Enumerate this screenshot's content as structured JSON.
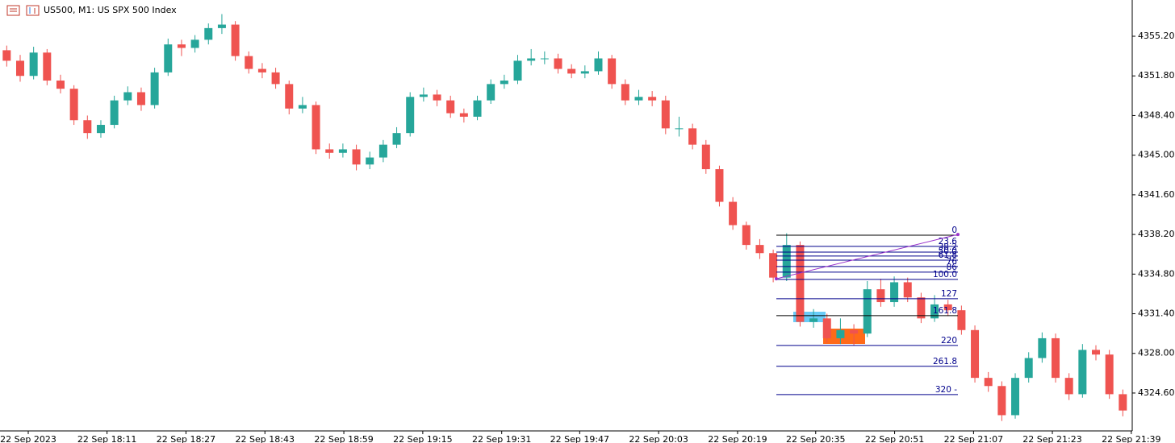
{
  "chart_data": {
    "type": "candlestick",
    "title": "US500, M1:  US SPX 500 Index",
    "up_color": "#26a69a",
    "down_color": "#ef5350",
    "ylim": [
      4321.35,
      4358.31
    ],
    "yticks": [
      {
        "value": 4355.2,
        "label": "4355.20"
      },
      {
        "value": 4351.8,
        "label": "4351.80"
      },
      {
        "value": 4348.4,
        "label": "4348.40"
      },
      {
        "value": 4345.0,
        "label": "4345.00"
      },
      {
        "value": 4341.6,
        "label": "4341.60"
      },
      {
        "value": 4338.2,
        "label": "4338.20"
      },
      {
        "value": 4334.8,
        "label": "4334.80"
      },
      {
        "value": 4331.4,
        "label": "4331.40"
      },
      {
        "value": 4328.0,
        "label": "4328.00"
      },
      {
        "value": 4324.6,
        "label": "4324.60"
      }
    ],
    "xlim": [
      0,
      84.2
    ],
    "xticks": [
      {
        "value": 2.1,
        "label": "22 Sep 2023"
      },
      {
        "value": 7.96,
        "label": "22 Sep 18:11"
      },
      {
        "value": 13.83,
        "label": "22 Sep 18:27"
      },
      {
        "value": 19.7,
        "label": "22 Sep 18:43"
      },
      {
        "value": 25.57,
        "label": "22 Sep 18:59"
      },
      {
        "value": 31.44,
        "label": "22 Sep 19:15"
      },
      {
        "value": 37.31,
        "label": "22 Sep 19:31"
      },
      {
        "value": 43.11,
        "label": "22 Sep 19:47"
      },
      {
        "value": 48.98,
        "label": "22 Sep 20:03"
      },
      {
        "value": 54.85,
        "label": "22 Sep 20:19"
      },
      {
        "value": 60.66,
        "label": "22 Sep 20:35"
      },
      {
        "value": 66.53,
        "label": "22 Sep 20:51"
      },
      {
        "value": 72.4,
        "label": "22 Sep 21:07"
      },
      {
        "value": 78.26,
        "label": "22 Sep 21:23"
      },
      {
        "value": 84.13,
        "label": "22 Sep 21:39"
      }
    ],
    "open": [
      4354.0,
      4353.1,
      4351.8,
      4353.8,
      4351.4,
      4350.7,
      4348.0,
      4346.9,
      4347.6,
      4349.7,
      4350.4,
      4349.3,
      4352.1,
      4354.5,
      4354.2,
      4354.9,
      4355.9,
      4356.2,
      4353.5,
      4352.4,
      4352.1,
      4351.1,
      4349.0,
      4349.3,
      4345.5,
      4345.2,
      4345.5,
      4344.2,
      4344.8,
      4345.9,
      4346.9,
      4350.0,
      4350.2,
      4349.7,
      4348.6,
      4348.3,
      4349.7,
      4351.1,
      4351.4,
      4353.1,
      4353.3,
      4353.3,
      4352.4,
      4352.0,
      4352.2,
      4353.3,
      4351.1,
      4349.7,
      4350.0,
      4349.7,
      4347.3,
      4347.3,
      4345.9,
      4343.8,
      4341.0,
      4339.0,
      4337.3,
      4336.6,
      4334.5,
      4337.3,
      4330.7,
      4331.0,
      4329.3,
      4330.0,
      4329.7,
      4333.5,
      4332.4,
      4334.1,
      4332.8,
      4331.0,
      4332.2,
      4331.7,
      4330.0,
      4325.9,
      4325.2,
      4322.7,
      4325.9,
      4327.6,
      4329.3,
      4325.9,
      4324.5,
      4328.3,
      4327.9,
      4324.5
    ],
    "high": [
      4354.4,
      4353.6,
      4354.3,
      4354.1,
      4351.9,
      4351.0,
      4348.4,
      4348.0,
      4350.1,
      4350.9,
      4350.8,
      4352.5,
      4355.0,
      4354.9,
      4355.3,
      4356.3,
      4357.1,
      4356.5,
      4353.9,
      4352.9,
      4352.5,
      4351.4,
      4350.0,
      4349.6,
      4346.0,
      4346.0,
      4345.9,
      4345.3,
      4346.3,
      4347.4,
      4350.4,
      4350.8,
      4350.6,
      4350.1,
      4349.0,
      4350.1,
      4351.5,
      4351.9,
      4353.6,
      4354.1,
      4353.9,
      4353.7,
      4352.8,
      4352.7,
      4353.9,
      4353.6,
      4351.5,
      4350.6,
      4350.5,
      4350.1,
      4348.3,
      4347.7,
      4346.3,
      4344.1,
      4341.4,
      4339.3,
      4337.8,
      4336.9,
      4338.3,
      4337.6,
      4331.8,
      4331.4,
      4331.0,
      4330.5,
      4334.2,
      4334.4,
      4334.6,
      4334.5,
      4333.2,
      4333.0,
      4332.6,
      4332.1,
      4330.4,
      4326.4,
      4325.6,
      4326.3,
      4328.1,
      4329.8,
      4329.7,
      4326.3,
      4328.8,
      4328.7,
      4328.3,
      4324.9
    ],
    "low": [
      4352.6,
      4351.3,
      4351.5,
      4351.0,
      4350.3,
      4347.6,
      4346.4,
      4346.5,
      4347.3,
      4349.3,
      4348.8,
      4349.0,
      4351.8,
      4353.5,
      4353.8,
      4354.5,
      4355.4,
      4353.1,
      4352.0,
      4351.6,
      4350.7,
      4348.5,
      4348.6,
      4345.1,
      4344.7,
      4344.8,
      4343.7,
      4343.8,
      4344.4,
      4345.6,
      4346.6,
      4349.6,
      4349.2,
      4348.2,
      4347.8,
      4348.0,
      4349.4,
      4350.7,
      4351.1,
      4352.7,
      4352.8,
      4352.0,
      4351.6,
      4351.6,
      4351.9,
      4350.7,
      4349.3,
      4349.3,
      4349.2,
      4346.8,
      4346.6,
      4345.5,
      4343.4,
      4340.6,
      4338.6,
      4336.9,
      4336.1,
      4334.1,
      4334.2,
      4330.3,
      4330.2,
      4328.9,
      4328.8,
      4328.7,
      4329.4,
      4332.0,
      4332.0,
      4332.4,
      4330.6,
      4330.7,
      4331.2,
      4329.6,
      4325.5,
      4324.7,
      4322.2,
      4322.4,
      4325.5,
      4327.2,
      4325.5,
      4324.0,
      4324.2,
      4327.4,
      4324.1,
      4322.6
    ],
    "close": [
      4353.1,
      4351.8,
      4353.8,
      4351.4,
      4350.7,
      4348.0,
      4346.9,
      4347.6,
      4349.7,
      4350.4,
      4349.3,
      4352.1,
      4354.5,
      4354.2,
      4354.9,
      4355.9,
      4356.2,
      4353.5,
      4352.4,
      4352.1,
      4351.1,
      4349.0,
      4349.3,
      4345.5,
      4345.2,
      4345.5,
      4344.2,
      4344.8,
      4345.9,
      4346.9,
      4350.0,
      4350.2,
      4349.7,
      4348.6,
      4348.3,
      4349.7,
      4351.1,
      4351.4,
      4353.1,
      4353.3,
      4353.3,
      4352.4,
      4352.0,
      4352.2,
      4353.3,
      4351.1,
      4349.7,
      4350.0,
      4349.7,
      4347.3,
      4347.3,
      4345.9,
      4343.8,
      4341.0,
      4339.0,
      4337.3,
      4336.6,
      4334.5,
      4337.3,
      4330.7,
      4331.0,
      4329.3,
      4330.0,
      4329.7,
      4333.5,
      4332.4,
      4334.1,
      4332.8,
      4331.0,
      4332.2,
      4331.7,
      4330.0,
      4325.9,
      4325.2,
      4322.7,
      4325.9,
      4327.6,
      4329.3,
      4325.9,
      4324.5,
      4328.3,
      4327.9,
      4324.5,
      4323.1
    ],
    "fibonacci": {
      "color": "#00008b",
      "levels": [
        {
          "label": "0",
          "price": 4338.14
        },
        {
          "label": "23.6",
          "price": 4337.18
        },
        {
          "label": "38.2",
          "price": 4336.69
        },
        {
          "label": "50.0",
          "price": 4336.35
        },
        {
          "label": "61.8",
          "price": 4336.0
        },
        {
          "label": "76",
          "price": 4335.45
        },
        {
          "label": "86",
          "price": 4334.97
        },
        {
          "label": "100.0",
          "price": 4334.35
        },
        {
          "label": "127",
          "price": 4332.69
        },
        {
          "label": "161.8",
          "price": 4331.24
        },
        {
          "label": "220",
          "price": 4328.68
        },
        {
          "label": "261.8",
          "price": 4326.89
        },
        {
          "label": "320 -",
          "price": 4324.47
        }
      ]
    },
    "trendline": {
      "color": "#9932cc",
      "start": 4334.4,
      "end": 4338.2
    }
  }
}
